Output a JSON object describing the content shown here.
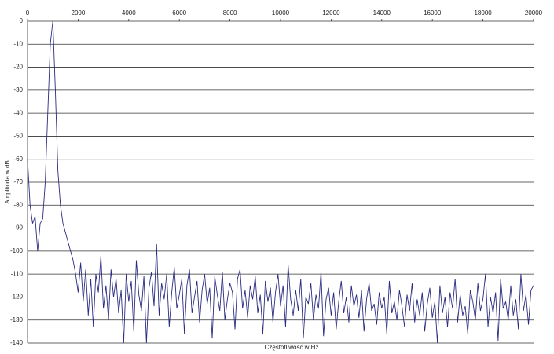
{
  "chart_data": {
    "type": "line",
    "xlabel": "Częstotliwość w Hz",
    "ylabel": "Amplituda w dB",
    "color": "#2b2b80",
    "grid": true,
    "xlim": [
      0,
      20000
    ],
    "xticks": [
      0,
      2000,
      4000,
      6000,
      8000,
      10000,
      12000,
      14000,
      16000,
      18000,
      20000
    ],
    "ylim": [
      -140,
      0
    ],
    "yticks": [
      0,
      -10,
      -20,
      -30,
      -40,
      -50,
      -60,
      -70,
      -80,
      -90,
      -100,
      -110,
      -120,
      -130,
      -140
    ],
    "x": [
      0,
      100,
      200,
      300,
      400,
      500,
      600,
      700,
      800,
      900,
      1000,
      1100,
      1200,
      1300,
      1400,
      1500,
      1600,
      1700,
      1800,
      1900,
      2000,
      2100,
      2200,
      2300,
      2400,
      2500,
      2600,
      2700,
      2800,
      2900,
      3000,
      3100,
      3200,
      3300,
      3400,
      3500,
      3600,
      3700,
      3800,
      3900,
      4000,
      4100,
      4200,
      4300,
      4400,
      4500,
      4600,
      4700,
      4800,
      4900,
      5000,
      5100,
      5200,
      5300,
      5400,
      5500,
      5600,
      5700,
      5800,
      5900,
      6000,
      6100,
      6200,
      6300,
      6400,
      6500,
      6600,
      6700,
      6800,
      6900,
      7000,
      7100,
      7200,
      7300,
      7400,
      7500,
      7600,
      7700,
      7800,
      7900,
      8000,
      8100,
      8200,
      8300,
      8400,
      8500,
      8600,
      8700,
      8800,
      8900,
      9000,
      9100,
      9200,
      9300,
      9400,
      9500,
      9600,
      9700,
      9800,
      9900,
      10000,
      10100,
      10200,
      10300,
      10400,
      10500,
      10600,
      10700,
      10800,
      10900,
      11000,
      11100,
      11200,
      11300,
      11400,
      11500,
      11600,
      11700,
      11800,
      11900,
      12000,
      12100,
      12200,
      12300,
      12400,
      12500,
      12600,
      12700,
      12800,
      12900,
      13000,
      13100,
      13200,
      13300,
      13400,
      13500,
      13600,
      13700,
      13800,
      13900,
      14000,
      14100,
      14200,
      14300,
      14400,
      14500,
      14600,
      14700,
      14800,
      14900,
      15000,
      15100,
      15200,
      15300,
      15400,
      15500,
      15600,
      15700,
      15800,
      15900,
      16000,
      16100,
      16200,
      16300,
      16400,
      16500,
      16600,
      16700,
      16800,
      16900,
      17000,
      17100,
      17200,
      17300,
      17400,
      17500,
      17600,
      17700,
      17800,
      17900,
      18000,
      18100,
      18200,
      18300,
      18400,
      18500,
      18600,
      18700,
      18800,
      18900,
      19000,
      19100,
      19200,
      19300,
      19400,
      19500,
      19600,
      19700,
      19800,
      19900,
      20000
    ],
    "values": [
      -60,
      -80,
      -88,
      -85,
      -100,
      -88,
      -86,
      -70,
      -40,
      -10,
      0,
      -30,
      -65,
      -80,
      -88,
      -92,
      -96,
      -100,
      -104,
      -110,
      -118,
      -105,
      -122,
      -108,
      -128,
      -112,
      -133,
      -110,
      -118,
      -102,
      -125,
      -115,
      -130,
      -108,
      -120,
      -112,
      -127,
      -117,
      -140,
      -110,
      -122,
      -113,
      -135,
      -104,
      -119,
      -126,
      -111,
      -140,
      -116,
      -109,
      -124,
      -97,
      -128,
      -114,
      -121,
      -110,
      -133,
      -118,
      -107,
      -125,
      -119,
      -112,
      -136,
      -115,
      -108,
      -127,
      -120,
      -113,
      -131,
      -117,
      -110,
      -123,
      -116,
      -138,
      -111,
      -119,
      -126,
      -109,
      -130,
      -121,
      -114,
      -118,
      -134,
      -112,
      -108,
      -125,
      -117,
      -129,
      -115,
      -121,
      -111,
      -127,
      -119,
      -136,
      -113,
      -122,
      -116,
      -131,
      -118,
      -110,
      -124,
      -115,
      -133,
      -106,
      -121,
      -128,
      -117,
      -126,
      -112,
      -138,
      -120,
      -123,
      -114,
      -130,
      -119,
      -125,
      -109,
      -137,
      -121,
      -116,
      -128,
      -118,
      -134,
      -122,
      -113,
      -127,
      -120,
      -131,
      -115,
      -124,
      -119,
      -129,
      -117,
      -135,
      -121,
      -114,
      -126,
      -123,
      -132,
      -118,
      -125,
      -120,
      -136,
      -113,
      -127,
      -122,
      -130,
      -117,
      -124,
      -133,
      -119,
      -126,
      -114,
      -131,
      -121,
      -128,
      -118,
      -135,
      -123,
      -116,
      -129,
      -122,
      -140,
      -115,
      -127,
      -120,
      -133,
      -118,
      -125,
      -112,
      -131,
      -119,
      -128,
      -124,
      -136,
      -117,
      -122,
      -130,
      -114,
      -126,
      -121,
      -110,
      -133,
      -120,
      -127,
      -118,
      -139,
      -112,
      -125,
      -122,
      -130,
      -115,
      -128,
      -121,
      -134,
      -110,
      -126,
      -119,
      -132,
      -117,
      -115
    ]
  }
}
